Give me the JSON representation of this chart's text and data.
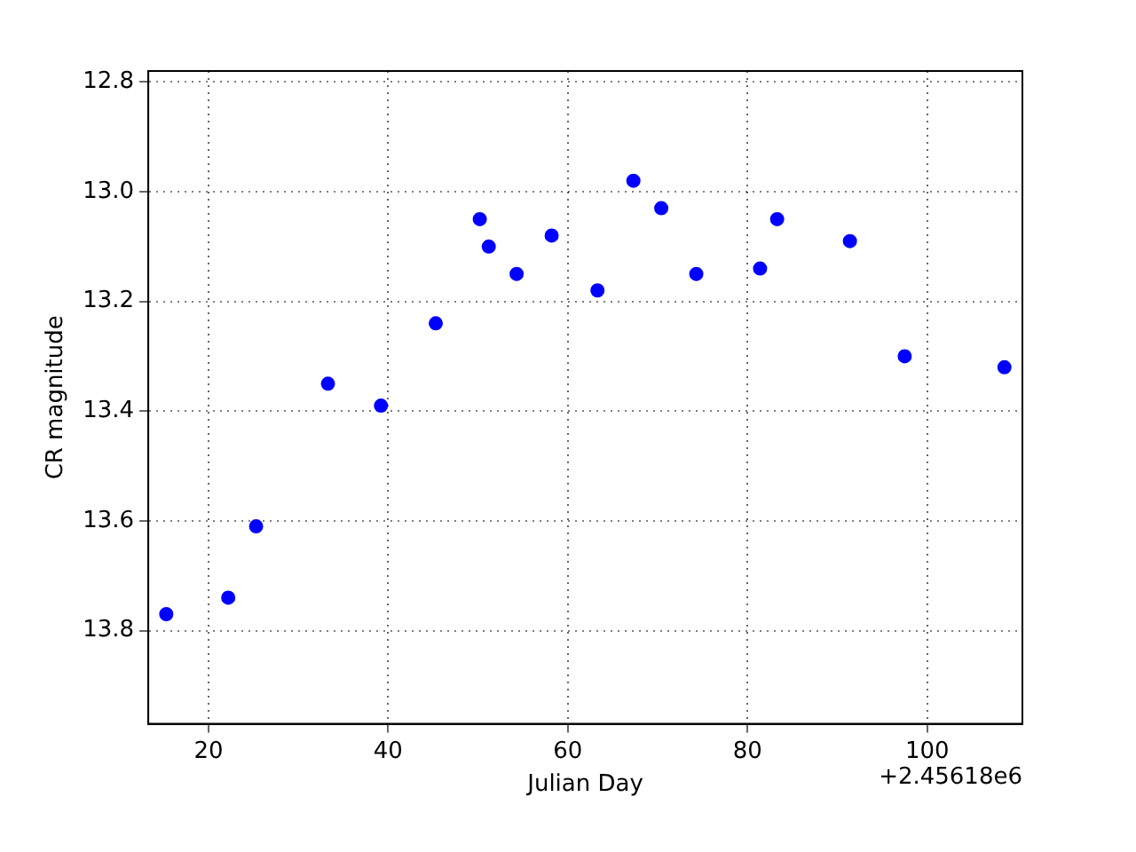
{
  "chart_data": {
    "type": "scatter",
    "xlabel": "Julian Day",
    "ylabel": "CR magnitude",
    "annotations": [
      "+2.45618e6"
    ],
    "x": [
      15.3,
      22.2,
      25.3,
      33.3,
      39.2,
      45.3,
      50.2,
      51.2,
      54.3,
      58.2,
      63.3,
      67.3,
      70.4,
      74.3,
      81.4,
      83.3,
      91.4,
      97.5,
      108.6
    ],
    "series": [
      {
        "color": "#0000ff",
        "values": [
          13.77,
          13.74,
          13.61,
          13.35,
          13.39,
          13.24,
          13.05,
          13.1,
          13.15,
          13.08,
          13.18,
          12.98,
          13.03,
          13.15,
          13.14,
          13.05,
          13.09,
          13.3,
          13.32
        ]
      }
    ],
    "xlim": [
      13.3,
      110.6
    ],
    "ylim": [
      13.97,
      12.78
    ],
    "xticks": [
      20,
      40,
      60,
      80,
      100
    ],
    "yticks": [
      12.8,
      {
        "value": 13,
        "label": "13.0"
      },
      13.2,
      13.4,
      13.6,
      13.8
    ],
    "grid": true,
    "marker": "circle",
    "legend": false
  }
}
